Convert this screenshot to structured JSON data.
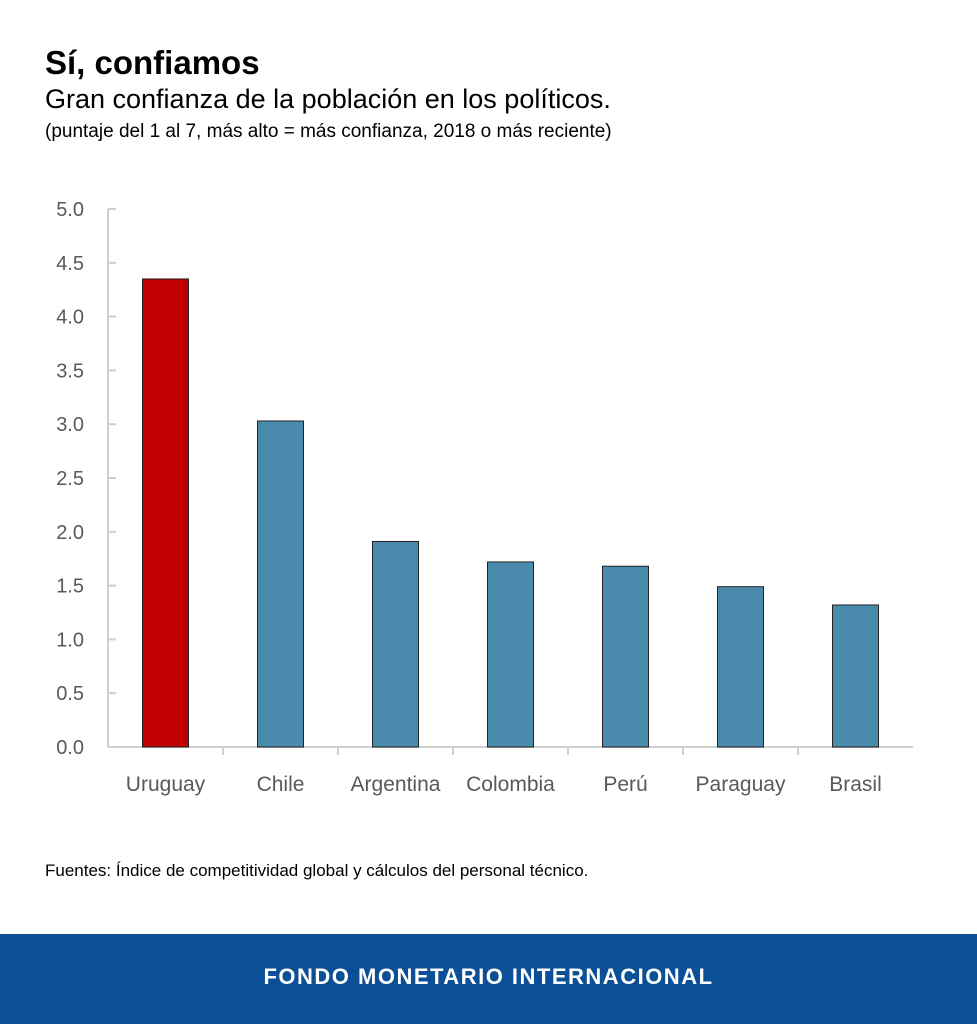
{
  "header": {
    "title": "Sí, confiamos",
    "subtitle": "Gran confianza de la población en los políticos.",
    "note": "(puntaje del 1 al 7, más alto = más confianza, 2018 o más reciente)"
  },
  "chart_data": {
    "type": "bar",
    "categories": [
      "Uruguay",
      "Chile",
      "Argentina",
      "Colombia",
      "Perú",
      "Paraguay",
      "Brasil"
    ],
    "values": [
      4.35,
      3.03,
      1.91,
      1.72,
      1.68,
      1.49,
      1.32
    ],
    "colors": [
      "#c00000",
      "#4a8bad",
      "#4a8bad",
      "#4a8bad",
      "#4a8bad",
      "#4a8bad",
      "#4a8bad"
    ],
    "ylim": [
      0,
      5
    ],
    "yticks": [
      "0.0",
      "0.5",
      "1.0",
      "1.5",
      "2.0",
      "2.5",
      "3.0",
      "3.5",
      "4.0",
      "4.5",
      "5.0"
    ],
    "grid": false,
    "xlabel": "",
    "ylabel": ""
  },
  "source": "Fuentes: Índice de competitividad global y cálculos del personal técnico.",
  "footer": {
    "label": "FONDO MONETARIO INTERNACIONAL",
    "color": "#0b4f96"
  }
}
